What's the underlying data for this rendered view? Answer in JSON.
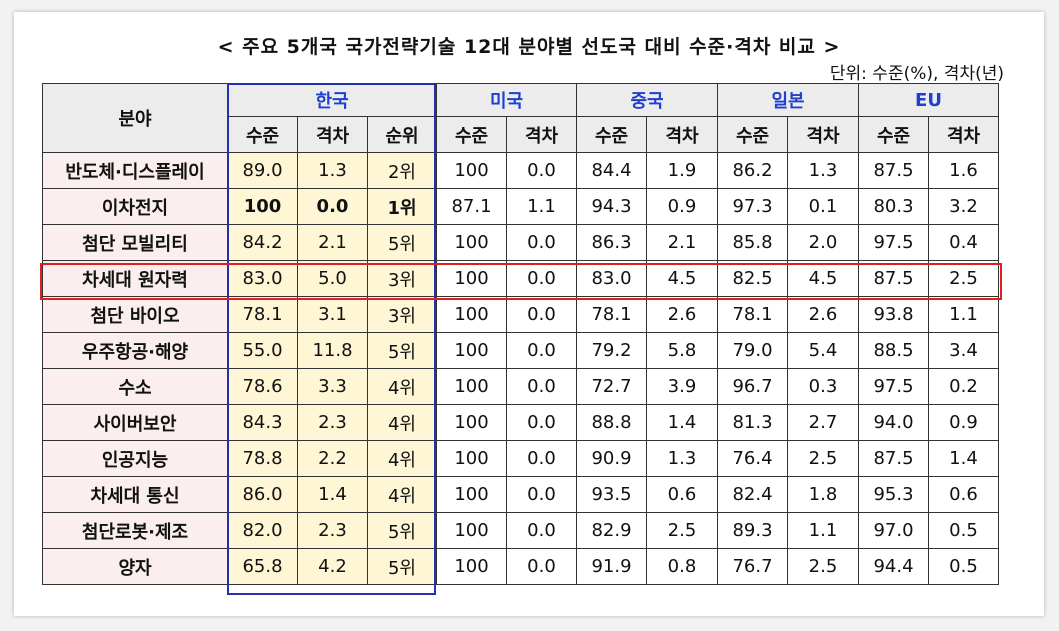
{
  "title": "< 주요 5개국 국가전략기술 12대 분야별 선도국 대비 수준·격차 비교 >",
  "unit_note": "단위: 수준(%), 격차(년)",
  "colors": {
    "country_header": "#1f3fd0",
    "korea_fill": "#fff6d5",
    "field_fill": "#fbeeee",
    "header_fill": "#ececec",
    "korea_outline": "#2233aa",
    "highlight_outline": "#e02020"
  },
  "highlighted_row": "차세대 원자력",
  "table": {
    "field_header": "분야",
    "countries": [
      {
        "name": "한국",
        "subheaders": [
          "수준",
          "격차",
          "순위"
        ]
      },
      {
        "name": "미국",
        "subheaders": [
          "수준",
          "격차"
        ]
      },
      {
        "name": "중국",
        "subheaders": [
          "수준",
          "격차"
        ]
      },
      {
        "name": "일본",
        "subheaders": [
          "수준",
          "격차"
        ]
      },
      {
        "name": "EU",
        "subheaders": [
          "수준",
          "격차"
        ]
      }
    ],
    "rows": [
      {
        "field": "반도체·디스플레이",
        "kr": [
          "89.0",
          "1.3",
          "2위"
        ],
        "us": [
          "100",
          "0.0"
        ],
        "cn": [
          "84.4",
          "1.9"
        ],
        "jp": [
          "86.2",
          "1.3"
        ],
        "eu": [
          "87.5",
          "1.6"
        ]
      },
      {
        "field": "이차전지",
        "kr": [
          "100",
          "0.0",
          "1위"
        ],
        "us": [
          "87.1",
          "1.1"
        ],
        "cn": [
          "94.3",
          "0.9"
        ],
        "jp": [
          "97.3",
          "0.1"
        ],
        "eu": [
          "80.3",
          "3.2"
        ]
      },
      {
        "field": "첨단 모빌리티",
        "kr": [
          "84.2",
          "2.1",
          "5위"
        ],
        "us": [
          "100",
          "0.0"
        ],
        "cn": [
          "86.3",
          "2.1"
        ],
        "jp": [
          "85.8",
          "2.0"
        ],
        "eu": [
          "97.5",
          "0.4"
        ]
      },
      {
        "field": "차세대 원자력",
        "kr": [
          "83.0",
          "5.0",
          "3위"
        ],
        "us": [
          "100",
          "0.0"
        ],
        "cn": [
          "83.0",
          "4.5"
        ],
        "jp": [
          "82.5",
          "4.5"
        ],
        "eu": [
          "87.5",
          "2.5"
        ]
      },
      {
        "field": "첨단 바이오",
        "kr": [
          "78.1",
          "3.1",
          "3위"
        ],
        "us": [
          "100",
          "0.0"
        ],
        "cn": [
          "78.1",
          "2.6"
        ],
        "jp": [
          "78.1",
          "2.6"
        ],
        "eu": [
          "93.8",
          "1.1"
        ]
      },
      {
        "field": "우주항공·해양",
        "kr": [
          "55.0",
          "11.8",
          "5위"
        ],
        "us": [
          "100",
          "0.0"
        ],
        "cn": [
          "79.2",
          "5.8"
        ],
        "jp": [
          "79.0",
          "5.4"
        ],
        "eu": [
          "88.5",
          "3.4"
        ]
      },
      {
        "field": "수소",
        "kr": [
          "78.6",
          "3.3",
          "4위"
        ],
        "us": [
          "100",
          "0.0"
        ],
        "cn": [
          "72.7",
          "3.9"
        ],
        "jp": [
          "96.7",
          "0.3"
        ],
        "eu": [
          "97.5",
          "0.2"
        ]
      },
      {
        "field": "사이버보안",
        "kr": [
          "84.3",
          "2.3",
          "4위"
        ],
        "us": [
          "100",
          "0.0"
        ],
        "cn": [
          "88.8",
          "1.4"
        ],
        "jp": [
          "81.3",
          "2.7"
        ],
        "eu": [
          "94.0",
          "0.9"
        ]
      },
      {
        "field": "인공지능",
        "kr": [
          "78.8",
          "2.2",
          "4위"
        ],
        "us": [
          "100",
          "0.0"
        ],
        "cn": [
          "90.9",
          "1.3"
        ],
        "jp": [
          "76.4",
          "2.5"
        ],
        "eu": [
          "87.5",
          "1.4"
        ]
      },
      {
        "field": "차세대 통신",
        "kr": [
          "86.0",
          "1.4",
          "4위"
        ],
        "us": [
          "100",
          "0.0"
        ],
        "cn": [
          "93.5",
          "0.6"
        ],
        "jp": [
          "82.4",
          "1.8"
        ],
        "eu": [
          "95.3",
          "0.6"
        ]
      },
      {
        "field": "첨단로봇·제조",
        "kr": [
          "82.0",
          "2.3",
          "5위"
        ],
        "us": [
          "100",
          "0.0"
        ],
        "cn": [
          "82.9",
          "2.5"
        ],
        "jp": [
          "89.3",
          "1.1"
        ],
        "eu": [
          "97.0",
          "0.5"
        ]
      },
      {
        "field": "양자",
        "kr": [
          "65.8",
          "4.2",
          "5위"
        ],
        "us": [
          "100",
          "0.0"
        ],
        "cn": [
          "91.9",
          "0.8"
        ],
        "jp": [
          "76.7",
          "2.5"
        ],
        "eu": [
          "94.4",
          "0.5"
        ]
      }
    ]
  }
}
